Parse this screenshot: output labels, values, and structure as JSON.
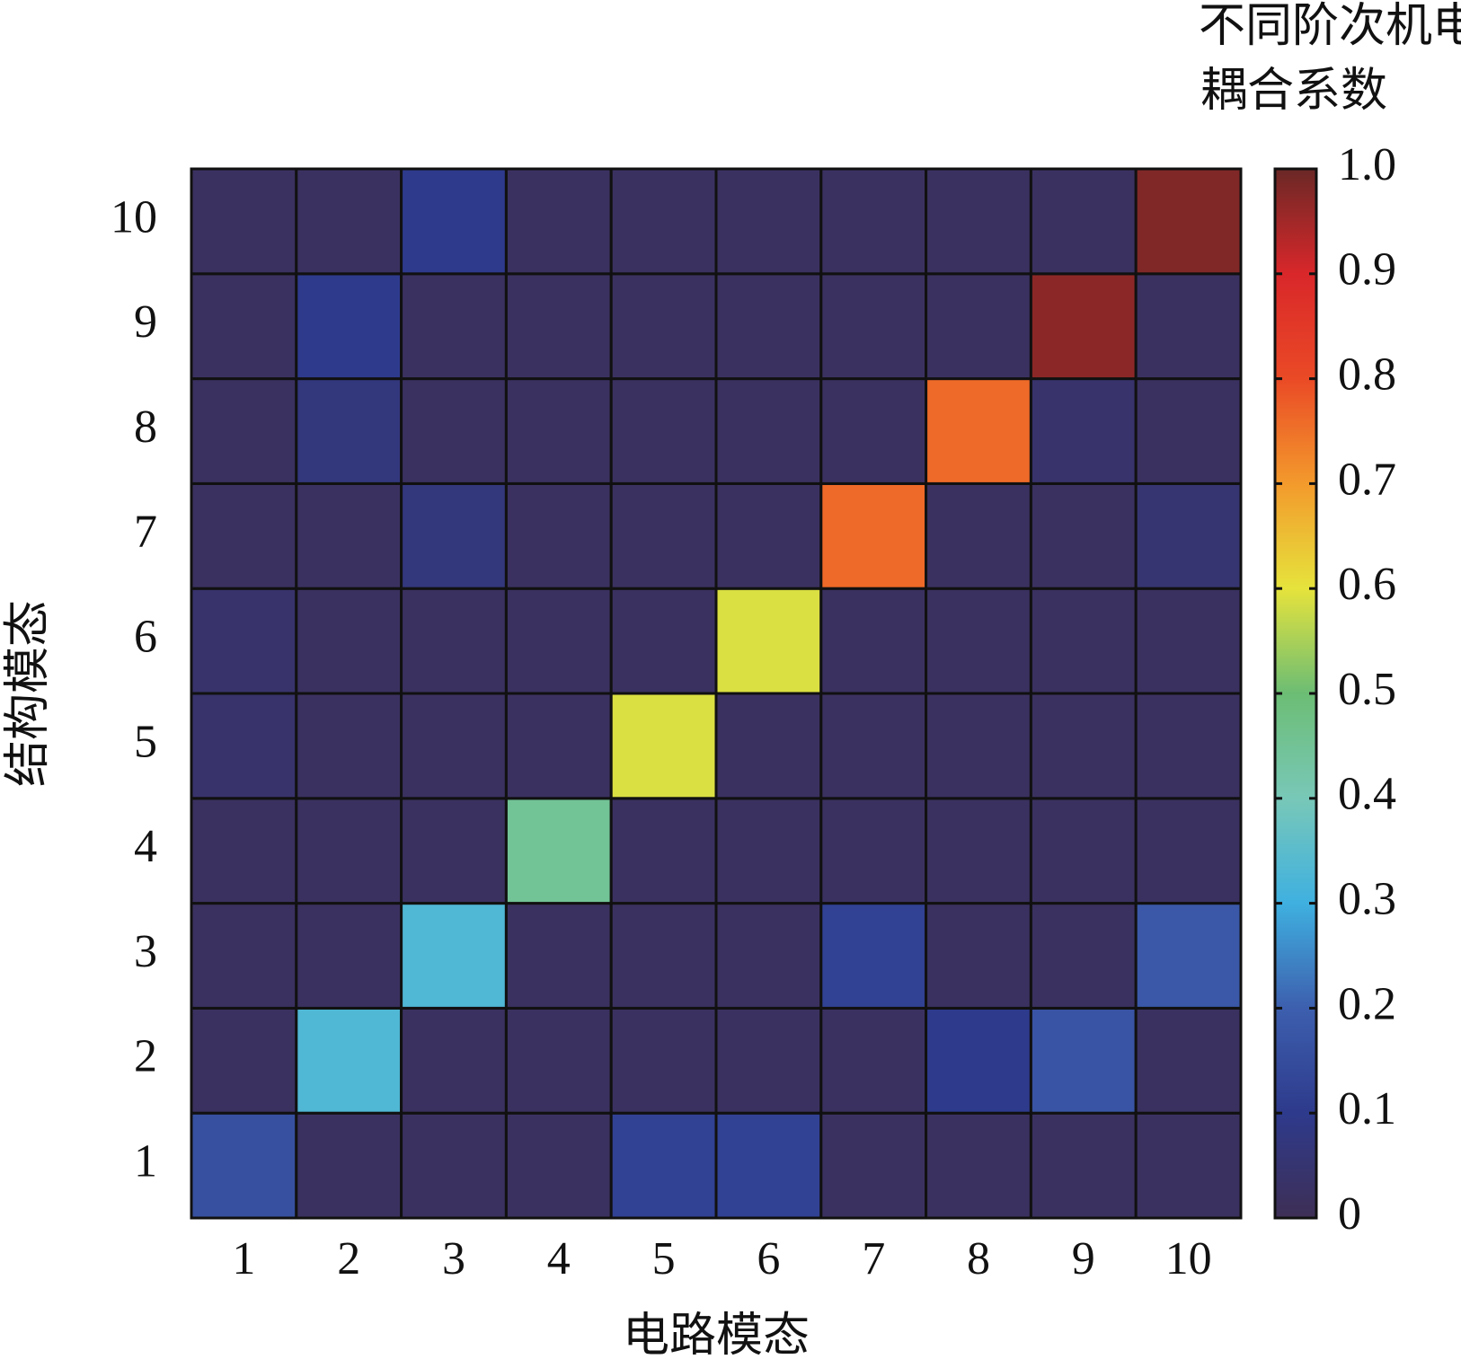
{
  "chart_data": {
    "type": "heatmap",
    "colorbar_title": [
      "不同阶次机电",
      "耦合系数"
    ],
    "xlabel": "电路模态",
    "ylabel": "结构模态",
    "x": [
      1,
      2,
      3,
      4,
      5,
      6,
      7,
      8,
      9,
      10
    ],
    "y": [
      1,
      2,
      3,
      4,
      5,
      6,
      7,
      8,
      9,
      10
    ],
    "values": [
      [
        0.16,
        0.02,
        0.02,
        0.02,
        0.12,
        0.12,
        0.02,
        0.02,
        0.02,
        0.02
      ],
      [
        0.02,
        0.33,
        0.02,
        0.02,
        0.02,
        0.02,
        0.02,
        0.1,
        0.17,
        0.02
      ],
      [
        0.02,
        0.02,
        0.33,
        0.02,
        0.02,
        0.02,
        0.12,
        0.02,
        0.02,
        0.18
      ],
      [
        0.02,
        0.02,
        0.02,
        0.45,
        0.02,
        0.02,
        0.02,
        0.02,
        0.02,
        0.02
      ],
      [
        0.04,
        0.02,
        0.02,
        0.02,
        0.59,
        0.02,
        0.02,
        0.02,
        0.02,
        0.02
      ],
      [
        0.04,
        0.02,
        0.02,
        0.02,
        0.02,
        0.59,
        0.02,
        0.02,
        0.02,
        0.02
      ],
      [
        0.02,
        0.02,
        0.07,
        0.02,
        0.02,
        0.02,
        0.76,
        0.02,
        0.02,
        0.05
      ],
      [
        0.02,
        0.07,
        0.02,
        0.02,
        0.02,
        0.02,
        0.02,
        0.76,
        0.04,
        0.02
      ],
      [
        0.02,
        0.1,
        0.02,
        0.02,
        0.02,
        0.02,
        0.02,
        0.02,
        0.97,
        0.02
      ],
      [
        0.02,
        0.02,
        0.1,
        0.02,
        0.02,
        0.02,
        0.02,
        0.02,
        0.02,
        0.98
      ]
    ],
    "zlim": [
      0,
      1
    ],
    "zticks": [
      0,
      0.1,
      0.2,
      0.3,
      0.4,
      0.5,
      0.6,
      0.7,
      0.8,
      0.9,
      {
        "value": 1,
        "label": "1.0"
      }
    ],
    "colormap": [
      "#3e2f55",
      "#2e3a8c",
      "#3d5fae",
      "#3fb0e0",
      "#78c8b8",
      "#6cbd74",
      "#e6e33c",
      "#f39a2c",
      "#ea4a26",
      "#d9272a",
      "#6a2826"
    ]
  }
}
